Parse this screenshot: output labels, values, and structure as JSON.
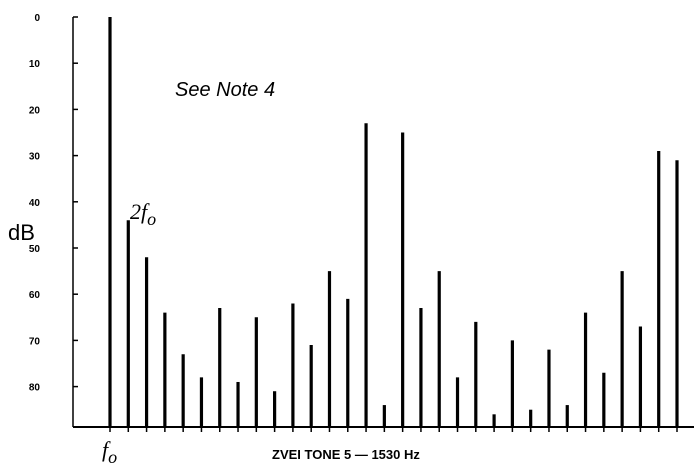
{
  "chart_data": {
    "type": "bar",
    "title": "ZVEI TONE 5 — 1530 Hz",
    "ylabel": "dB",
    "y_inverted": true,
    "ylim": [
      0,
      88
    ],
    "yticks": [
      0,
      10,
      20,
      30,
      40,
      50,
      60,
      70,
      80
    ],
    "grid": false,
    "bar_color": "#000000",
    "note": "See Note 4",
    "x_label_first": "f",
    "x_label_first_sub": "o",
    "harmonic2_label": "2f",
    "harmonic2_sub": "o",
    "values": [
      0,
      44,
      52,
      64,
      73,
      78,
      63,
      79,
      65,
      81,
      62,
      71,
      55,
      61,
      23,
      84,
      25,
      63,
      55,
      78,
      66,
      86,
      70,
      85,
      72,
      84,
      64,
      77,
      55,
      67,
      29,
      31
    ]
  }
}
